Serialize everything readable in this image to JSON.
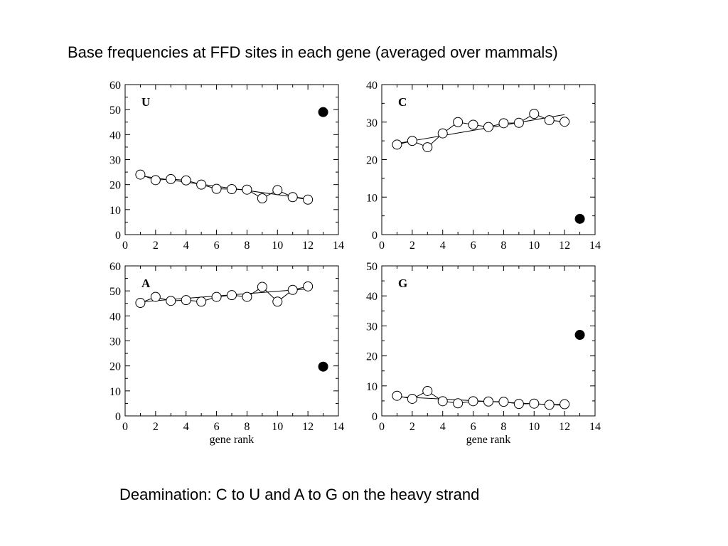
{
  "slide": {
    "title": "Base frequencies at FFD sites in each gene (averaged over mammals)",
    "caption": "Deamination: C to U and A to G on the heavy strand"
  },
  "chart_data": [
    {
      "type": "scatter",
      "panel_label": "U",
      "xlabel": "",
      "ylabel": "",
      "xlim": [
        0,
        14
      ],
      "ylim": [
        0,
        60
      ],
      "xticks": [
        0,
        2,
        4,
        6,
        8,
        10,
        12,
        14
      ],
      "yticks": [
        0,
        10,
        20,
        30,
        40,
        50,
        60
      ],
      "x": [
        1,
        2,
        3,
        4,
        5,
        6,
        7,
        8,
        9,
        10,
        11,
        12
      ],
      "values": [
        24,
        21.8,
        22.2,
        21.7,
        20,
        18.3,
        18.2,
        18,
        14.5,
        17.8,
        15,
        14
      ],
      "trend": [
        [
          1,
          23.5
        ],
        [
          12,
          14.3
        ]
      ],
      "filled_point": [
        13,
        49
      ],
      "grid": false
    },
    {
      "type": "scatter",
      "panel_label": "C",
      "xlabel": "",
      "ylabel": "",
      "xlim": [
        0,
        14
      ],
      "ylim": [
        0,
        40
      ],
      "xticks": [
        0,
        2,
        4,
        6,
        8,
        10,
        12,
        14
      ],
      "yticks": [
        0,
        10,
        20,
        30,
        40
      ],
      "x": [
        1,
        2,
        3,
        4,
        5,
        6,
        7,
        8,
        9,
        10,
        11,
        12
      ],
      "values": [
        24,
        25,
        23.3,
        27,
        30,
        29.3,
        28.7,
        29.7,
        29.8,
        32.2,
        30.5,
        30.1
      ],
      "trend": [
        [
          1,
          24.3
        ],
        [
          12,
          32
        ]
      ],
      "filled_point": [
        13,
        4.2
      ],
      "grid": false
    },
    {
      "type": "scatter",
      "panel_label": "A",
      "xlabel": "gene rank",
      "ylabel": "",
      "xlim": [
        0,
        14
      ],
      "ylim": [
        0,
        60
      ],
      "xticks": [
        0,
        2,
        4,
        6,
        8,
        10,
        12,
        14
      ],
      "yticks": [
        0,
        10,
        20,
        30,
        40,
        50,
        60
      ],
      "x": [
        1,
        2,
        3,
        4,
        5,
        6,
        7,
        8,
        9,
        10,
        11,
        12
      ],
      "values": [
        45.2,
        47.6,
        46,
        46.3,
        45.7,
        47.6,
        48.3,
        47.6,
        51.6,
        45.7,
        50.4,
        51.8
      ],
      "trend": [
        [
          1,
          45.6
        ],
        [
          12,
          50.8
        ]
      ],
      "filled_point": [
        13,
        19.7
      ],
      "grid": false
    },
    {
      "type": "scatter",
      "panel_label": "G",
      "xlabel": "gene rank",
      "ylabel": "",
      "xlim": [
        0,
        14
      ],
      "ylim": [
        0,
        50
      ],
      "xticks": [
        0,
        2,
        4,
        6,
        8,
        10,
        12,
        14
      ],
      "yticks": [
        0,
        10,
        20,
        30,
        40,
        50
      ],
      "x": [
        1,
        2,
        3,
        4,
        5,
        6,
        7,
        8,
        9,
        10,
        11,
        12
      ],
      "values": [
        6.7,
        5.7,
        8.3,
        4.9,
        4.2,
        4.9,
        4.8,
        4.7,
        4,
        4.1,
        3.7,
        3.9
      ],
      "trend": [
        [
          1,
          6.4
        ],
        [
          12,
          3.5
        ]
      ],
      "filled_point": [
        13,
        27
      ],
      "grid": false
    }
  ]
}
